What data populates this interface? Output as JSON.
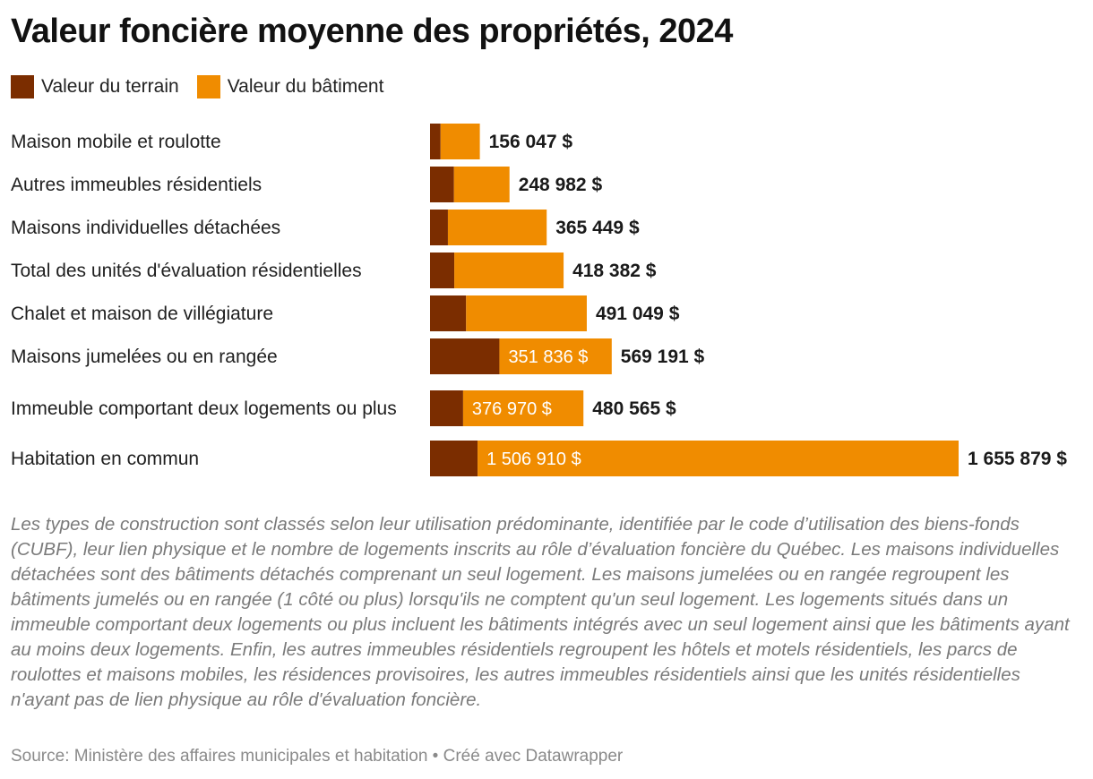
{
  "title": "Valeur foncière moyenne des propriétés, 2024",
  "legend": [
    {
      "label": "Valeur du terrain",
      "color": "#7b2d00"
    },
    {
      "label": "Valeur du bâtiment",
      "color": "#f08c00"
    }
  ],
  "chart_data": {
    "type": "bar",
    "orientation": "horizontal",
    "stacked": true,
    "categories": [
      "Maison mobile et roulotte",
      "Autres immeubles résidentiels",
      "Maisons individuelles détachées",
      "Total des unités d'évaluation résidentielles",
      "Chalet et maison de villégiature",
      "Maisons jumelées ou en rangée",
      "Immeuble comportant deux logements ou plus",
      "Habitation en commun"
    ],
    "series": [
      {
        "name": "Valeur du terrain",
        "color": "#7b2d00",
        "values": [
          33000,
          75000,
          56000,
          76000,
          113000,
          217355,
          103595,
          148969
        ]
      },
      {
        "name": "Valeur du bâtiment",
        "color": "#f08c00",
        "values": [
          123047,
          173982,
          309449,
          342382,
          378049,
          351836,
          376970,
          1506910
        ]
      }
    ],
    "totals": [
      156047,
      248982,
      365449,
      418382,
      491049,
      569191,
      480565,
      1655879
    ],
    "total_labels": [
      "156 047 $",
      "248 982 $",
      "365 449 $",
      "418 382 $",
      "491 049 $",
      "569 191 $",
      "480 565 $",
      "1 655 879 $"
    ],
    "segment_labels": [
      "",
      "",
      "",
      "",
      "",
      "351 836 $",
      "376 970 $",
      "1 506 910 $"
    ],
    "xlim": [
      0,
      1655879
    ]
  },
  "notes": "Les types de construction sont classés selon leur utilisation prédominante, identifiée par le code d’utilisation des biens-fonds (CUBF), leur lien physique et le nombre de logements inscrits au rôle d’évaluation foncière du Québec. Les maisons individuelles détachées sont des bâtiments détachés comprenant un seul logement. Les maisons jumelées ou en rangée regroupent les bâtiments jumelés ou en rangée (1 côté ou plus) lorsqu'ils ne comptent qu'un seul logement. Les logements situés dans un immeuble comportant deux logements ou plus incluent les bâtiments intégrés avec un seul logement ainsi que les bâtiments ayant au moins deux logements. Enfin, les autres immeubles résidentiels regroupent les hôtels et motels résidentiels, les parcs de roulottes et maisons mobiles, les résidences provisoires, les autres immeubles résidentiels ainsi que les unités résidentielles n'ayant pas de lien physique au rôle d'évaluation foncière.",
  "source": "Source: Ministère des affaires municipales et habitation • Créé avec Datawrapper"
}
